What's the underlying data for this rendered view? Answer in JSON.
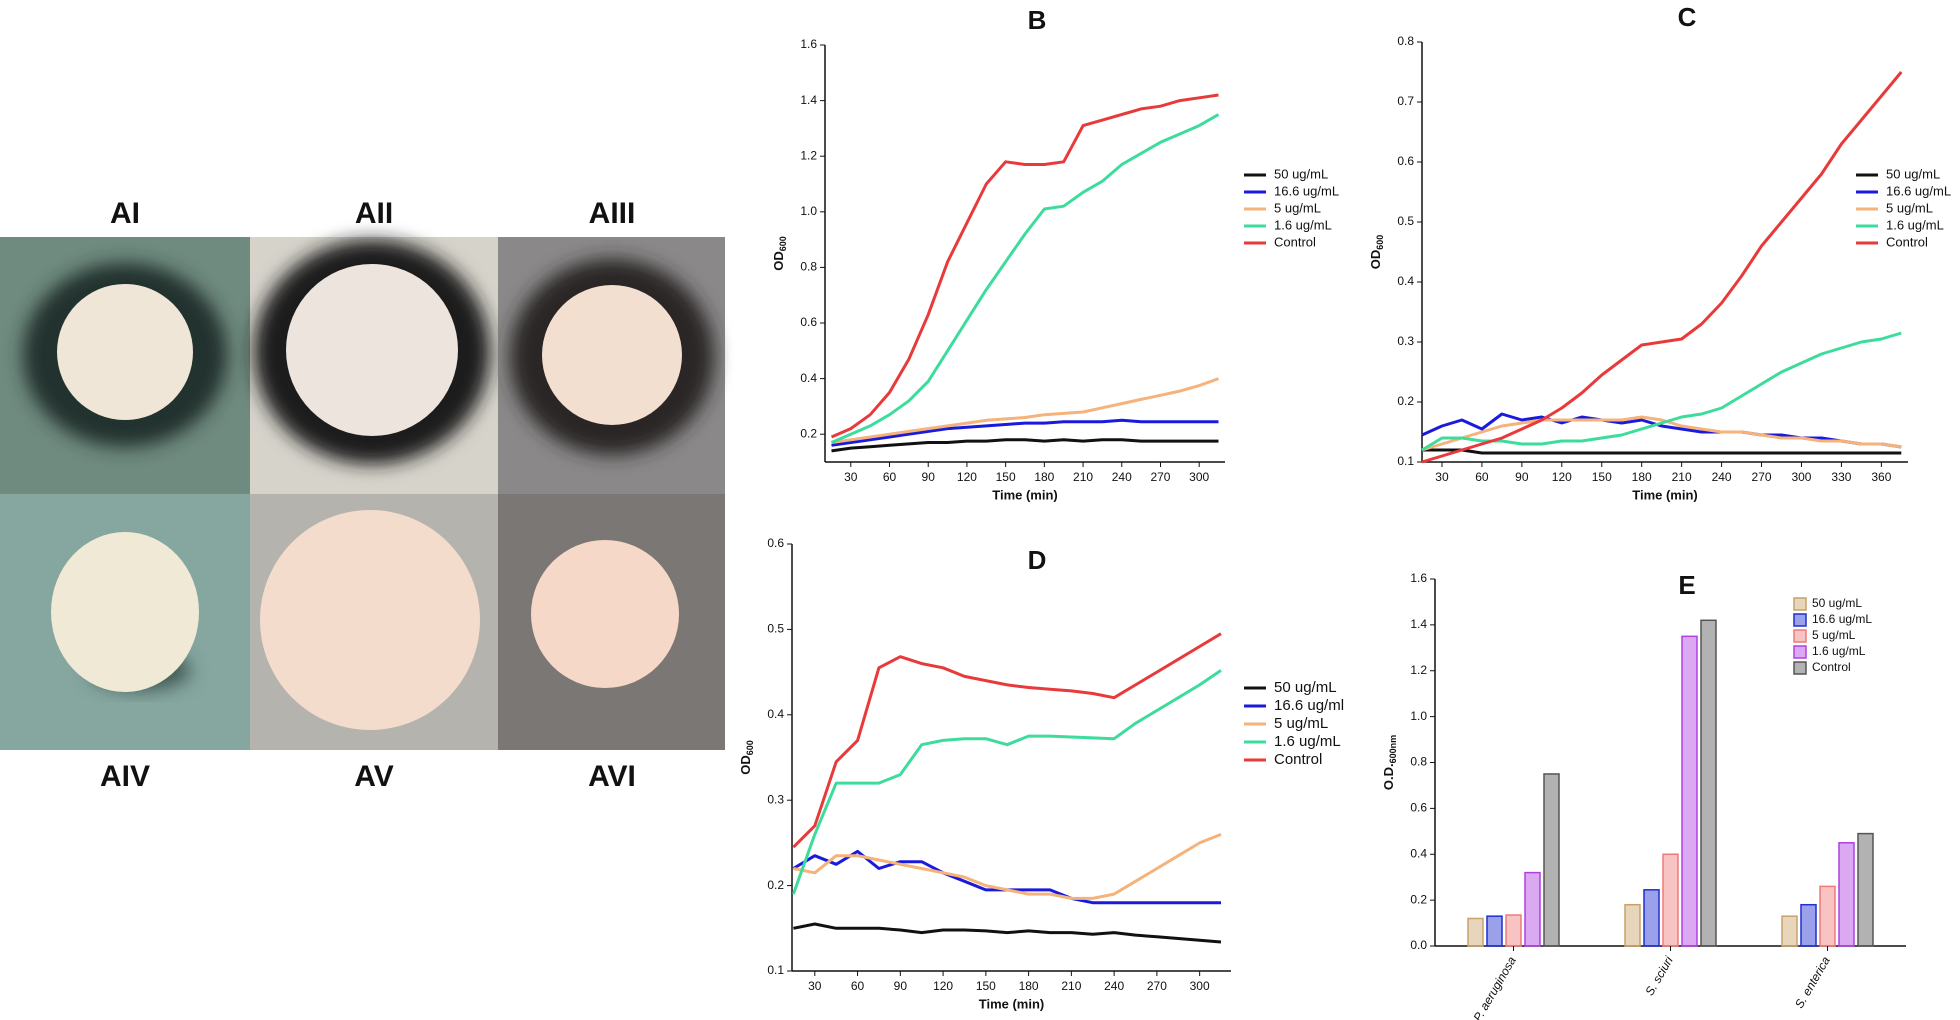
{
  "photo_labels": [
    "AI",
    "AII",
    "AIII",
    "AIV",
    "AV",
    "AVI"
  ],
  "chart_data": [
    {
      "type": "line",
      "title": "B",
      "xlabel": "Time (min)",
      "ylabel": "OD",
      "ylabel_sub": "600",
      "x": [
        15,
        30,
        45,
        60,
        75,
        90,
        105,
        120,
        135,
        150,
        165,
        180,
        195,
        210,
        225,
        240,
        255,
        270,
        285,
        300,
        315
      ],
      "xlim": [
        10,
        320
      ],
      "xticks": [
        30,
        60,
        90,
        120,
        150,
        180,
        210,
        240,
        270,
        300
      ],
      "ylim": [
        0.1,
        1.6
      ],
      "yticks": [
        0.2,
        0.4,
        0.6,
        0.8,
        {
          "value": 1,
          "label": "1.0"
        },
        1.2,
        1.4,
        1.6
      ],
      "series": [
        {
          "name": "50 ug/mL",
          "color": "#111111",
          "values": [
            0.14,
            0.15,
            0.155,
            0.16,
            0.165,
            0.17,
            0.17,
            0.175,
            0.175,
            0.18,
            0.18,
            0.175,
            0.18,
            0.175,
            0.18,
            0.18,
            0.175,
            0.175,
            0.175,
            0.175,
            0.175
          ]
        },
        {
          "name": "16.6 ug/mL",
          "color": "#1a1adc",
          "values": [
            0.16,
            0.17,
            0.18,
            0.19,
            0.2,
            0.21,
            0.22,
            0.225,
            0.23,
            0.235,
            0.24,
            0.24,
            0.245,
            0.245,
            0.245,
            0.25,
            0.245,
            0.245,
            0.245,
            0.245,
            0.245
          ]
        },
        {
          "name": "5 ug/mL",
          "color": "#f5b27a",
          "values": [
            0.17,
            0.18,
            0.19,
            0.2,
            0.21,
            0.22,
            0.23,
            0.24,
            0.25,
            0.255,
            0.26,
            0.27,
            0.275,
            0.28,
            0.295,
            0.31,
            0.325,
            0.34,
            0.355,
            0.375,
            0.4
          ]
        },
        {
          "name": "1.6 ug/mL",
          "color": "#3ddc9c",
          "values": [
            0.17,
            0.2,
            0.23,
            0.27,
            0.32,
            0.39,
            0.5,
            0.61,
            0.72,
            0.82,
            0.92,
            1.01,
            1.02,
            1.07,
            1.11,
            1.17,
            1.21,
            1.25,
            1.28,
            1.31,
            1.35
          ]
        },
        {
          "name": "Control",
          "color": "#e83a3a",
          "values": [
            0.19,
            0.22,
            0.27,
            0.35,
            0.47,
            0.63,
            0.82,
            0.96,
            1.1,
            1.18,
            1.17,
            1.17,
            1.18,
            1.31,
            1.33,
            1.35,
            1.37,
            1.38,
            1.4,
            1.41,
            1.42
          ]
        }
      ]
    },
    {
      "type": "line",
      "title": "C",
      "xlabel": "Time (min)",
      "ylabel": "OD",
      "ylabel_sub": "600",
      "x": [
        15,
        30,
        45,
        60,
        75,
        90,
        105,
        120,
        135,
        150,
        165,
        180,
        195,
        210,
        225,
        240,
        255,
        270,
        285,
        300,
        315,
        330,
        345,
        360,
        375
      ],
      "xlim": [
        15,
        380
      ],
      "xticks": [
        30,
        60,
        90,
        120,
        150,
        180,
        210,
        240,
        270,
        300,
        330,
        360
      ],
      "ylim": [
        0.1,
        0.8
      ],
      "yticks": [
        0.1,
        0.2,
        0.3,
        0.4,
        0.5,
        0.6,
        0.7,
        0.8
      ],
      "series": [
        {
          "name": "50 ug/mL",
          "color": "#111111",
          "values": [
            0.12,
            0.12,
            0.12,
            0.115,
            0.115,
            0.115,
            0.115,
            0.115,
            0.115,
            0.115,
            0.115,
            0.115,
            0.115,
            0.115,
            0.115,
            0.115,
            0.115,
            0.115,
            0.115,
            0.115,
            0.115,
            0.115,
            0.115,
            0.115,
            0.115
          ]
        },
        {
          "name": "16.6 ug/mL",
          "color": "#1a1adc",
          "values": [
            0.145,
            0.16,
            0.17,
            0.155,
            0.18,
            0.17,
            0.175,
            0.165,
            0.175,
            0.17,
            0.165,
            0.17,
            0.16,
            0.155,
            0.15,
            0.15,
            0.15,
            0.145,
            0.145,
            0.14,
            0.14,
            0.135,
            0.13,
            0.13,
            0.125
          ]
        },
        {
          "name": "5 ug/mL",
          "color": "#f5b27a",
          "values": [
            0.12,
            0.13,
            0.14,
            0.15,
            0.16,
            0.165,
            0.17,
            0.17,
            0.17,
            0.17,
            0.17,
            0.175,
            0.17,
            0.16,
            0.155,
            0.15,
            0.15,
            0.145,
            0.14,
            0.14,
            0.135,
            0.135,
            0.13,
            0.13,
            0.125
          ]
        },
        {
          "name": "1.6 ug/mL",
          "color": "#3ddc9c",
          "values": [
            0.12,
            0.14,
            0.14,
            0.135,
            0.135,
            0.13,
            0.13,
            0.135,
            0.135,
            0.14,
            0.145,
            0.155,
            0.165,
            0.175,
            0.18,
            0.19,
            0.21,
            0.23,
            0.25,
            0.265,
            0.28,
            0.29,
            0.3,
            0.305,
            0.315
          ]
        },
        {
          "name": "Control",
          "color": "#e83a3a",
          "values": [
            0.1,
            0.11,
            0.12,
            0.13,
            0.14,
            0.155,
            0.17,
            0.19,
            0.215,
            0.245,
            0.27,
            0.295,
            0.3,
            0.305,
            0.33,
            0.365,
            0.41,
            0.46,
            0.5,
            0.54,
            0.58,
            0.63,
            0.67,
            0.71,
            0.75
          ]
        }
      ]
    },
    {
      "type": "line",
      "title": "D",
      "xlabel": "Time (min)",
      "ylabel": "OD",
      "ylabel_sub": "600",
      "x": [
        15,
        30,
        45,
        60,
        75,
        90,
        105,
        120,
        135,
        150,
        165,
        180,
        195,
        210,
        225,
        240,
        255,
        270,
        285,
        300,
        315
      ],
      "xlim": [
        14,
        322
      ],
      "xticks": [
        30,
        60,
        90,
        120,
        150,
        180,
        210,
        240,
        270,
        300
      ],
      "ylim": [
        0.1,
        0.6
      ],
      "yticks": [
        0.1,
        0.2,
        0.3,
        0.4,
        0.5,
        0.6
      ],
      "series": [
        {
          "name": "50 ug/mL",
          "color": "#111111",
          "values": [
            0.15,
            0.155,
            0.15,
            0.15,
            0.15,
            0.148,
            0.145,
            0.148,
            0.148,
            0.147,
            0.145,
            0.147,
            0.145,
            0.145,
            0.143,
            0.145,
            0.142,
            0.14,
            0.138,
            0.136,
            0.134
          ]
        },
        {
          "name": "16.6 ug/ml",
          "color": "#1a1adc",
          "values": [
            0.22,
            0.235,
            0.225,
            0.24,
            0.22,
            0.228,
            0.228,
            0.215,
            0.205,
            0.195,
            0.195,
            0.195,
            0.195,
            0.185,
            0.18,
            0.18,
            0.18,
            0.18,
            0.18,
            0.18,
            0.18
          ]
        },
        {
          "name": "5 ug/mL",
          "color": "#f5b27a",
          "values": [
            0.22,
            0.215,
            0.235,
            0.235,
            0.23,
            0.225,
            0.22,
            0.215,
            0.21,
            0.2,
            0.195,
            0.19,
            0.19,
            0.185,
            0.185,
            0.19,
            0.205,
            0.22,
            0.235,
            0.25,
            0.26
          ]
        },
        {
          "name": "1.6 ug/mL",
          "color": "#3ddc9c",
          "values": [
            0.19,
            0.26,
            0.32,
            0.32,
            0.32,
            0.33,
            0.365,
            0.37,
            0.372,
            0.372,
            0.365,
            0.375,
            0.375,
            0.374,
            0.373,
            0.372,
            0.39,
            0.405,
            0.42,
            0.435,
            0.452
          ]
        },
        {
          "name": "Control",
          "color": "#e83a3a",
          "values": [
            0.245,
            0.27,
            0.345,
            0.37,
            0.455,
            0.468,
            0.46,
            0.455,
            0.445,
            0.44,
            0.435,
            0.432,
            0.43,
            0.428,
            0.425,
            0.42,
            0.435,
            0.45,
            0.465,
            0.48,
            0.495
          ]
        }
      ]
    },
    {
      "type": "bar",
      "title": "E",
      "ylabel": "O.D.",
      "ylabel_sub": "600nm",
      "categories": [
        "P. aeruginosa",
        "S. sciuri",
        "S. enterica"
      ],
      "ylim": [
        0,
        1.6
      ],
      "yticks": [
        {
          "value": 0,
          "label": "0.0"
        },
        0.2,
        0.4,
        0.6,
        0.8,
        {
          "value": 1,
          "label": "1.0"
        },
        1.2,
        1.4,
        1.6
      ],
      "series": [
        {
          "name": "50 ug/mL",
          "color": "#c9a26a",
          "values": [
            0.12,
            0.18,
            0.13
          ]
        },
        {
          "name": "16.6 ug/mL",
          "color": "#1f2fd0",
          "values": [
            0.13,
            0.245,
            0.18
          ]
        },
        {
          "name": "5 ug/mL",
          "color": "#f07a7a",
          "values": [
            0.135,
            0.4,
            0.26
          ]
        },
        {
          "name": "1.6 ug/mL",
          "color": "#b040e0",
          "values": [
            0.32,
            1.35,
            0.45
          ]
        },
        {
          "name": "Control",
          "color": "#555555",
          "values": [
            0.75,
            1.42,
            0.49
          ]
        }
      ]
    }
  ]
}
